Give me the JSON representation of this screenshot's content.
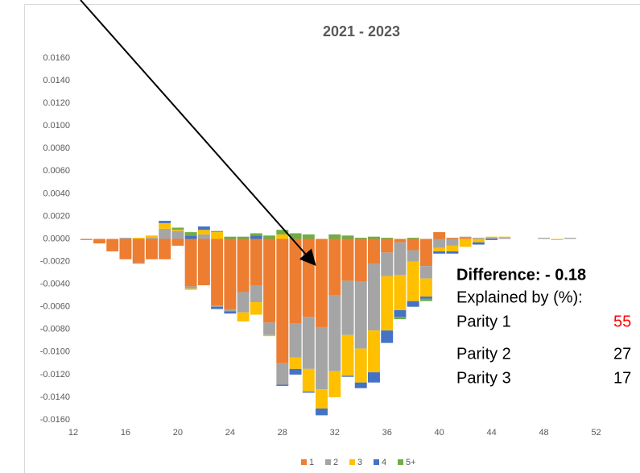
{
  "chart_data": {
    "type": "stacked_bar",
    "title": "2021 - 2023",
    "x": [
      13,
      14,
      15,
      16,
      17,
      18,
      19,
      20,
      21,
      22,
      23,
      24,
      25,
      26,
      27,
      28,
      29,
      30,
      31,
      32,
      33,
      34,
      35,
      36,
      37,
      38,
      39,
      40,
      41,
      42,
      43,
      44,
      45,
      46,
      47,
      48,
      49,
      50,
      51,
      52,
      53
    ],
    "series": [
      {
        "name": "1",
        "color": "#ed7d31",
        "values": [
          -0.0001,
          -0.0004,
          -0.0011,
          -0.0018,
          -0.0021,
          -0.0018,
          -0.0018,
          -0.0006,
          -0.0042,
          -0.0041,
          -0.0059,
          -0.0062,
          -0.0047,
          -0.0041,
          -0.0074,
          -0.011,
          -0.0075,
          -0.0069,
          -0.0078,
          -0.005,
          -0.0037,
          -0.0038,
          -0.0022,
          -0.0012,
          -0.0003,
          -0.001,
          -0.0024,
          0.0006,
          0.0001,
          0.0001,
          0,
          0,
          0,
          0,
          0,
          0,
          0,
          0,
          0,
          0,
          0
        ]
      },
      {
        "name": "2",
        "color": "#a5a5a5",
        "values": [
          0,
          0,
          0,
          0.0001,
          -0.0001,
          0.0001,
          0.0009,
          0.0007,
          -0.0002,
          0.0004,
          -0.0001,
          -0.0002,
          -0.0018,
          -0.0015,
          -0.0011,
          -0.0019,
          -0.003,
          -0.0046,
          -0.0055,
          -0.0067,
          -0.0048,
          -0.0059,
          -0.0059,
          -0.0021,
          -0.0029,
          -0.001,
          -0.0011,
          -0.0008,
          -0.0006,
          0.0001,
          0.0001,
          0.0001,
          0.0001,
          0,
          0,
          0.0001,
          0,
          0.0001,
          0,
          0,
          0
        ]
      },
      {
        "name": "3",
        "color": "#ffc000",
        "values": [
          0,
          0,
          0,
          0,
          0.0001,
          0.0002,
          0.0005,
          0.0001,
          -0.0001,
          0.0004,
          0.0006,
          0,
          -0.0008,
          -0.0011,
          -0.0001,
          0.0004,
          -0.001,
          -0.002,
          -0.0017,
          -0.0023,
          -0.0036,
          -0.003,
          -0.0037,
          -0.0048,
          -0.0031,
          -0.0035,
          -0.0016,
          -0.0003,
          -0.0005,
          -0.0007,
          -0.0003,
          0.0001,
          0.0001,
          0,
          0,
          0,
          -0.0001,
          0,
          0,
          0,
          0
        ]
      },
      {
        "name": "4",
        "color": "#4472c4",
        "values": [
          0,
          0,
          0,
          0,
          0,
          0,
          0.0002,
          0,
          0.0003,
          0.0003,
          -0.0002,
          -0.0002,
          0,
          0.0003,
          0,
          -0.0001,
          -0.0005,
          -0.0001,
          -0.0006,
          0,
          -0.0001,
          -0.0005,
          -0.0009,
          -0.0011,
          -0.0006,
          -0.0005,
          -0.0002,
          -0.0002,
          -0.0002,
          0,
          -0.0002,
          -0.0001,
          0,
          0,
          0,
          0,
          0,
          0,
          0,
          0,
          0
        ]
      },
      {
        "name": "5+",
        "color": "#70ad47",
        "values": [
          0,
          0,
          0,
          0,
          0,
          0,
          0,
          0.0002,
          0.0003,
          0,
          0.0001,
          0.0002,
          0.0002,
          0.0002,
          0.0003,
          0.0004,
          0.0005,
          0.0004,
          0,
          0.0004,
          0.0003,
          0.0001,
          0.0002,
          0.0001,
          -0.0002,
          0.0001,
          -0.0002,
          0,
          0,
          0,
          0,
          0,
          0,
          0,
          0,
          0,
          0,
          0,
          0,
          0,
          0
        ]
      }
    ],
    "xlim": [
      12,
      54
    ],
    "xticks": [
      12,
      16,
      20,
      24,
      28,
      32,
      36,
      40,
      44,
      48,
      52
    ],
    "ylim": [
      -0.016,
      0.016
    ],
    "yticks": [
      {
        "value": 0.016,
        "label": "0.0160"
      },
      {
        "value": 0.014,
        "label": "0.0140"
      },
      {
        "value": 0.012,
        "label": "0.0120"
      },
      {
        "value": 0.01,
        "label": "0.0100"
      },
      {
        "value": 0.008,
        "label": "0.0080"
      },
      {
        "value": 0.006,
        "label": "0.0060"
      },
      {
        "value": 0.004,
        "label": "0.0040"
      },
      {
        "value": 0.002,
        "label": "0.0020"
      },
      {
        "value": 0,
        "label": "0.0000"
      },
      {
        "value": -0.002,
        "label": "-0.0020"
      },
      {
        "value": -0.004,
        "label": "-0.0040"
      },
      {
        "value": -0.006,
        "label": "-0.0060"
      },
      {
        "value": -0.008,
        "label": "-0.0080"
      },
      {
        "value": -0.01,
        "label": "-0.0100"
      },
      {
        "value": -0.012,
        "label": "-0.0120"
      },
      {
        "value": -0.014,
        "label": "-0.0140"
      },
      {
        "value": -0.016,
        "label": "-0.0160"
      }
    ],
    "grid": false,
    "legend": "bottom",
    "annotations": {
      "difference": "Difference:  - 0.18",
      "explained_by": "Explained by (%):",
      "rows": [
        {
          "label": "Parity 1",
          "value": 55
        },
        {
          "label": "Parity 2",
          "value": 27
        },
        {
          "label": "Parity 3",
          "value": 17
        }
      ]
    }
  }
}
